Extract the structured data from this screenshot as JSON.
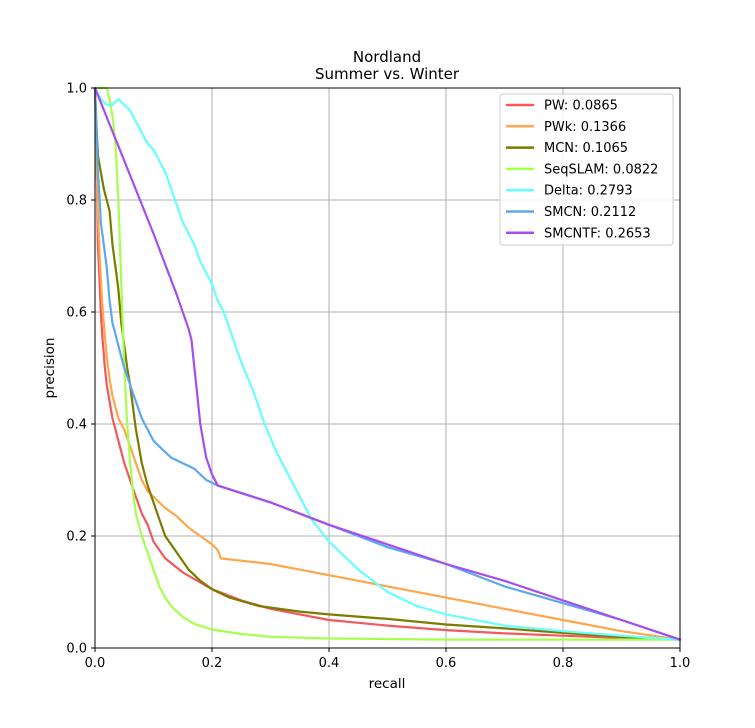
{
  "chart_data": {
    "type": "line",
    "title": "Nordland",
    "subtitle": "Summer vs. Winter",
    "xlabel": "recall",
    "ylabel": "precision",
    "xlim": [
      0,
      1
    ],
    "ylim": [
      0,
      1
    ],
    "xticks": [
      "0.0",
      "0.2",
      "0.4",
      "0.6",
      "0.8",
      "1.0"
    ],
    "yticks": [
      "0.0",
      "0.2",
      "0.4",
      "0.6",
      "0.8",
      "1.0"
    ],
    "grid": true,
    "legend_position": "top-right",
    "series": [
      {
        "name": "PW: 0.0865",
        "color": "#f05a5a",
        "points": [
          [
            0.0,
            1.0
          ],
          [
            0.003,
            0.85
          ],
          [
            0.005,
            0.72
          ],
          [
            0.008,
            0.65
          ],
          [
            0.01,
            0.6
          ],
          [
            0.013,
            0.55
          ],
          [
            0.017,
            0.5
          ],
          [
            0.02,
            0.47
          ],
          [
            0.025,
            0.44
          ],
          [
            0.03,
            0.41
          ],
          [
            0.035,
            0.39
          ],
          [
            0.04,
            0.37
          ],
          [
            0.05,
            0.33
          ],
          [
            0.06,
            0.3
          ],
          [
            0.07,
            0.27
          ],
          [
            0.08,
            0.24
          ],
          [
            0.09,
            0.22
          ],
          [
            0.1,
            0.19
          ],
          [
            0.12,
            0.16
          ],
          [
            0.15,
            0.135
          ],
          [
            0.2,
            0.105
          ],
          [
            0.25,
            0.085
          ],
          [
            0.3,
            0.07
          ],
          [
            0.4,
            0.05
          ],
          [
            0.5,
            0.04
          ],
          [
            0.6,
            0.032
          ],
          [
            0.7,
            0.026
          ],
          [
            0.8,
            0.022
          ],
          [
            0.9,
            0.018
          ],
          [
            1.0,
            0.015
          ]
        ]
      },
      {
        "name": "PWk: 0.1366",
        "color": "#ffa64d",
        "points": [
          [
            0.0,
            1.0
          ],
          [
            0.003,
            0.85
          ],
          [
            0.005,
            0.78
          ],
          [
            0.008,
            0.7
          ],
          [
            0.012,
            0.62
          ],
          [
            0.015,
            0.58
          ],
          [
            0.02,
            0.52
          ],
          [
            0.025,
            0.48
          ],
          [
            0.03,
            0.45
          ],
          [
            0.04,
            0.41
          ],
          [
            0.05,
            0.39
          ],
          [
            0.06,
            0.36
          ],
          [
            0.07,
            0.33
          ],
          [
            0.08,
            0.3
          ],
          [
            0.09,
            0.28
          ],
          [
            0.1,
            0.27
          ],
          [
            0.12,
            0.25
          ],
          [
            0.14,
            0.235
          ],
          [
            0.16,
            0.215
          ],
          [
            0.18,
            0.2
          ],
          [
            0.2,
            0.185
          ],
          [
            0.21,
            0.175
          ],
          [
            0.215,
            0.16
          ],
          [
            0.3,
            0.15
          ],
          [
            0.4,
            0.13
          ],
          [
            0.5,
            0.11
          ],
          [
            0.6,
            0.09
          ],
          [
            0.7,
            0.07
          ],
          [
            0.8,
            0.05
          ],
          [
            0.9,
            0.03
          ],
          [
            1.0,
            0.015
          ]
        ]
      },
      {
        "name": "MCN: 0.1065",
        "color": "#7b7b00",
        "points": [
          [
            0.0,
            1.0
          ],
          [
            0.003,
            0.92
          ],
          [
            0.005,
            0.88
          ],
          [
            0.01,
            0.85
          ],
          [
            0.015,
            0.82
          ],
          [
            0.02,
            0.8
          ],
          [
            0.025,
            0.78
          ],
          [
            0.03,
            0.72
          ],
          [
            0.035,
            0.68
          ],
          [
            0.04,
            0.64
          ],
          [
            0.045,
            0.58
          ],
          [
            0.05,
            0.54
          ],
          [
            0.055,
            0.5
          ],
          [
            0.06,
            0.47
          ],
          [
            0.065,
            0.43
          ],
          [
            0.07,
            0.39
          ],
          [
            0.075,
            0.36
          ],
          [
            0.08,
            0.33
          ],
          [
            0.085,
            0.31
          ],
          [
            0.09,
            0.29
          ],
          [
            0.1,
            0.26
          ],
          [
            0.11,
            0.23
          ],
          [
            0.12,
            0.2
          ],
          [
            0.14,
            0.17
          ],
          [
            0.16,
            0.14
          ],
          [
            0.18,
            0.12
          ],
          [
            0.2,
            0.105
          ],
          [
            0.23,
            0.09
          ],
          [
            0.28,
            0.075
          ],
          [
            0.35,
            0.065
          ],
          [
            0.4,
            0.06
          ],
          [
            0.5,
            0.052
          ],
          [
            0.6,
            0.042
          ],
          [
            0.7,
            0.035
          ],
          [
            0.8,
            0.027
          ],
          [
            0.9,
            0.02
          ],
          [
            1.0,
            0.015
          ]
        ]
      },
      {
        "name": "SeqSLAM: 0.0822",
        "color": "#a6ff4d",
        "points": [
          [
            0.0,
            1.0
          ],
          [
            0.01,
            1.0
          ],
          [
            0.02,
            1.0
          ],
          [
            0.025,
            0.98
          ],
          [
            0.03,
            0.95
          ],
          [
            0.035,
            0.9
          ],
          [
            0.04,
            0.8
          ],
          [
            0.045,
            0.65
          ],
          [
            0.05,
            0.5
          ],
          [
            0.055,
            0.4
          ],
          [
            0.06,
            0.33
          ],
          [
            0.065,
            0.28
          ],
          [
            0.07,
            0.24
          ],
          [
            0.08,
            0.2
          ],
          [
            0.09,
            0.17
          ],
          [
            0.1,
            0.14
          ],
          [
            0.11,
            0.11
          ],
          [
            0.12,
            0.09
          ],
          [
            0.13,
            0.075
          ],
          [
            0.15,
            0.055
          ],
          [
            0.17,
            0.043
          ],
          [
            0.2,
            0.033
          ],
          [
            0.25,
            0.025
          ],
          [
            0.3,
            0.02
          ],
          [
            0.4,
            0.017
          ],
          [
            0.5,
            0.016
          ],
          [
            0.6,
            0.015
          ],
          [
            0.8,
            0.015
          ],
          [
            1.0,
            0.015
          ]
        ]
      },
      {
        "name": "Delta: 0.2793",
        "color": "#66ffff",
        "points": [
          [
            0.0,
            1.0
          ],
          [
            0.01,
            0.98
          ],
          [
            0.02,
            0.97
          ],
          [
            0.03,
            0.97
          ],
          [
            0.04,
            0.98
          ],
          [
            0.05,
            0.97
          ],
          [
            0.06,
            0.96
          ],
          [
            0.07,
            0.94
          ],
          [
            0.08,
            0.92
          ],
          [
            0.09,
            0.9
          ],
          [
            0.1,
            0.89
          ],
          [
            0.11,
            0.87
          ],
          [
            0.12,
            0.85
          ],
          [
            0.13,
            0.82
          ],
          [
            0.14,
            0.79
          ],
          [
            0.15,
            0.76
          ],
          [
            0.16,
            0.74
          ],
          [
            0.17,
            0.72
          ],
          [
            0.18,
            0.69
          ],
          [
            0.19,
            0.67
          ],
          [
            0.2,
            0.65
          ],
          [
            0.21,
            0.62
          ],
          [
            0.22,
            0.6
          ],
          [
            0.23,
            0.57
          ],
          [
            0.24,
            0.54
          ],
          [
            0.25,
            0.51
          ],
          [
            0.27,
            0.46
          ],
          [
            0.29,
            0.4
          ],
          [
            0.31,
            0.35
          ],
          [
            0.33,
            0.31
          ],
          [
            0.35,
            0.27
          ],
          [
            0.37,
            0.23
          ],
          [
            0.4,
            0.19
          ],
          [
            0.45,
            0.14
          ],
          [
            0.5,
            0.1
          ],
          [
            0.55,
            0.075
          ],
          [
            0.6,
            0.06
          ],
          [
            0.7,
            0.04
          ],
          [
            0.8,
            0.03
          ],
          [
            0.9,
            0.022
          ],
          [
            1.0,
            0.015
          ]
        ]
      },
      {
        "name": "SMCN: 0.2112",
        "color": "#5ca8f0",
        "points": [
          [
            0.0,
            1.0
          ],
          [
            0.003,
            0.9
          ],
          [
            0.005,
            0.85
          ],
          [
            0.008,
            0.8
          ],
          [
            0.01,
            0.76
          ],
          [
            0.015,
            0.72
          ],
          [
            0.02,
            0.68
          ],
          [
            0.025,
            0.62
          ],
          [
            0.03,
            0.58
          ],
          [
            0.035,
            0.56
          ],
          [
            0.04,
            0.54
          ],
          [
            0.045,
            0.52
          ],
          [
            0.05,
            0.5
          ],
          [
            0.06,
            0.47
          ],
          [
            0.07,
            0.44
          ],
          [
            0.08,
            0.41
          ],
          [
            0.09,
            0.39
          ],
          [
            0.1,
            0.37
          ],
          [
            0.11,
            0.36
          ],
          [
            0.12,
            0.35
          ],
          [
            0.13,
            0.34
          ],
          [
            0.14,
            0.335
          ],
          [
            0.15,
            0.33
          ],
          [
            0.16,
            0.325
          ],
          [
            0.17,
            0.32
          ],
          [
            0.18,
            0.31
          ],
          [
            0.19,
            0.3
          ],
          [
            0.2,
            0.295
          ],
          [
            0.21,
            0.29
          ],
          [
            0.3,
            0.26
          ],
          [
            0.4,
            0.22
          ],
          [
            0.5,
            0.18
          ],
          [
            0.6,
            0.15
          ],
          [
            0.7,
            0.11
          ],
          [
            0.8,
            0.08
          ],
          [
            0.9,
            0.05
          ],
          [
            1.0,
            0.015
          ]
        ]
      },
      {
        "name": "SMCNTF: 0.2653",
        "color": "#a64df0",
        "points": [
          [
            0.0,
            1.0
          ],
          [
            0.05,
            0.87
          ],
          [
            0.1,
            0.74
          ],
          [
            0.14,
            0.63
          ],
          [
            0.16,
            0.57
          ],
          [
            0.165,
            0.55
          ],
          [
            0.17,
            0.5
          ],
          [
            0.175,
            0.45
          ],
          [
            0.18,
            0.4
          ],
          [
            0.185,
            0.37
          ],
          [
            0.19,
            0.34
          ],
          [
            0.2,
            0.31
          ],
          [
            0.21,
            0.29
          ],
          [
            0.3,
            0.26
          ],
          [
            0.4,
            0.22
          ],
          [
            0.5,
            0.185
          ],
          [
            0.6,
            0.15
          ],
          [
            0.7,
            0.12
          ],
          [
            0.8,
            0.085
          ],
          [
            0.9,
            0.05
          ],
          [
            1.0,
            0.015
          ]
        ]
      }
    ]
  }
}
